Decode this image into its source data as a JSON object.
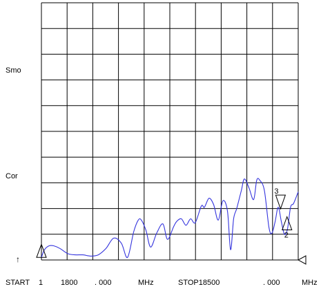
{
  "side_labels": {
    "smo": "Smo",
    "cor": "Cor",
    "ref_arrow": "↑"
  },
  "footer": {
    "start_label": "START",
    "start_channel": "1",
    "start_int": "1800",
    "start_frac": ". 000",
    "start_unit": "MHz",
    "stop_label": "STOP18500",
    "stop_frac": ". 000",
    "stop_unit": "MHz"
  },
  "colors": {
    "trace": "#3333dd",
    "grid": "#000000",
    "background": "#ffffff"
  },
  "markers": [
    {
      "label": "1",
      "x": 1800
    },
    {
      "label": "3",
      "x": 17350
    },
    {
      "label": "2",
      "x": 17770
    }
  ],
  "chart_data": {
    "type": "line",
    "title": "",
    "xlabel": "",
    "ylabel": "",
    "xlim": [
      1800,
      18500
    ],
    "ylim": [
      0,
      10
    ],
    "x_unit": "MHz",
    "grid": true,
    "divisions": {
      "x": 10,
      "y": 10
    },
    "series": [
      {
        "x": [
          1800,
          2000,
          2300,
          2600,
          3000,
          3500,
          4000,
          4500,
          5000,
          5500,
          6000,
          6500,
          7000,
          7400,
          7800,
          8100,
          8300,
          8600,
          8900,
          9300,
          9700,
          10000,
          10400,
          10600,
          10900,
          11200,
          11500,
          11800,
          12200,
          12400,
          12700,
          13000,
          13300,
          13600,
          13900,
          14100,
          14300,
          14500,
          14800,
          15000,
          15300,
          15600,
          15800,
          16000,
          16300,
          16600,
          16800,
          17000,
          17200,
          17400,
          17600,
          17800,
          18000,
          18200,
          18500
        ],
        "y": [
          0.1,
          0.4,
          0.55,
          0.55,
          0.45,
          0.25,
          0.2,
          0.2,
          0.15,
          0.2,
          0.45,
          0.85,
          0.65,
          0.1,
          1.1,
          1.55,
          1.55,
          1.15,
          0.5,
          1.05,
          1.4,
          0.8,
          1.3,
          1.5,
          1.6,
          1.35,
          1.6,
          1.45,
          2.1,
          2.05,
          2.4,
          2.15,
          1.55,
          2.3,
          1.9,
          0.4,
          1.6,
          2.0,
          2.7,
          3.15,
          2.8,
          2.35,
          3.1,
          3.1,
          2.7,
          1.25,
          1.05,
          1.5,
          2.05,
          1.5,
          1.0,
          1.2,
          2.05,
          2.2,
          2.65
        ]
      }
    ]
  }
}
